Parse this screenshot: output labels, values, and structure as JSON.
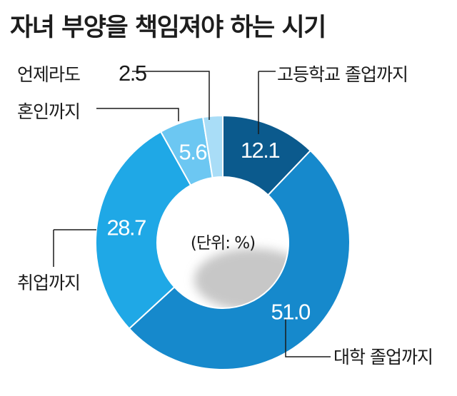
{
  "chart_data": {
    "type": "pie",
    "donut": true,
    "title": "자녀 부양을 책임져야 하는 시기",
    "unit_note": "(단위: %)",
    "slices": [
      {
        "label": "고등학교 졸업까지",
        "value": 12.1,
        "value_text": "12.1",
        "color": "#0b5a8d"
      },
      {
        "label": "대학 졸업까지",
        "value": 51.0,
        "value_text": "51.0",
        "color": "#1689cc"
      },
      {
        "label": "취업까지",
        "value": 28.7,
        "value_text": "28.7",
        "color": "#1fa8e6"
      },
      {
        "label": "혼인까지",
        "value": 5.6,
        "value_text": "5.6",
        "color": "#6cc7f2"
      },
      {
        "label": "언제라도",
        "value": 2.5,
        "value_text": "2.5",
        "color": "#a9ddf7"
      }
    ]
  }
}
